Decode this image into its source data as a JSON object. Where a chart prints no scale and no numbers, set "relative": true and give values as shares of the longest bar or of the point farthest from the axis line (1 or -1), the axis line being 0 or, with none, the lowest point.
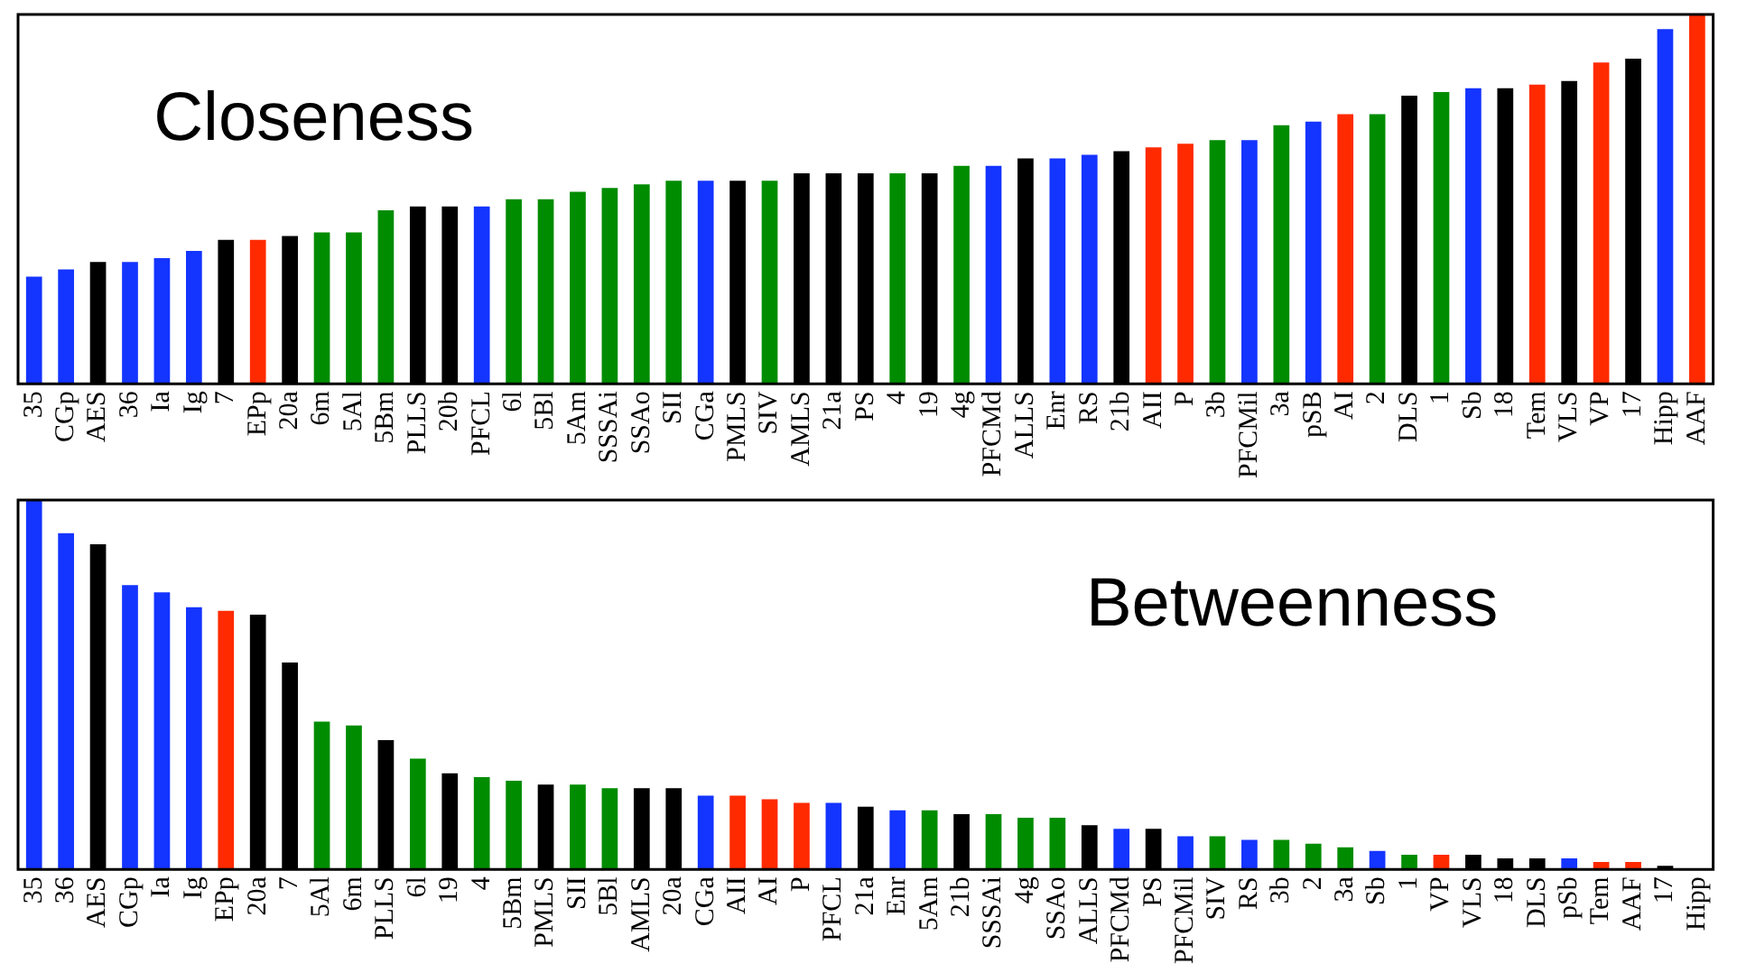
{
  "chart_data": [
    {
      "type": "bar",
      "title": "Closeness",
      "relative": true,
      "grid": false,
      "legend": false,
      "categories": [
        "35",
        "CGp",
        "AES",
        "36",
        "Ia",
        "Ig",
        "7",
        "EPp",
        "20a",
        "6m",
        "5Al",
        "5Bm",
        "PLLS",
        "20b",
        "PFCL",
        "6l",
        "5Bl",
        "5Am",
        "SSSAi",
        "SSAo",
        "SII",
        "CGa",
        "PMLS",
        "SIV",
        "AMLS",
        "21a",
        "PS",
        "4",
        "19",
        "4g",
        "PFCMd",
        "ALLS",
        "Enr",
        "RS",
        "21b",
        "AII",
        "P",
        "3b",
        "PFCMil",
        "3a",
        "pSB",
        "AI",
        "2",
        "DLS",
        "1",
        "Sb",
        "18",
        "Tem",
        "VLS",
        "VP",
        "17",
        "Hipp",
        "AAF"
      ],
      "values": [
        0.29,
        0.31,
        0.33,
        0.33,
        0.34,
        0.36,
        0.39,
        0.39,
        0.4,
        0.41,
        0.41,
        0.47,
        0.48,
        0.48,
        0.48,
        0.5,
        0.5,
        0.52,
        0.53,
        0.54,
        0.55,
        0.55,
        0.55,
        0.55,
        0.57,
        0.57,
        0.57,
        0.57,
        0.57,
        0.59,
        0.59,
        0.61,
        0.61,
        0.62,
        0.63,
        0.64,
        0.65,
        0.66,
        0.66,
        0.7,
        0.71,
        0.73,
        0.73,
        0.78,
        0.79,
        0.8,
        0.8,
        0.81,
        0.82,
        0.87,
        0.88,
        0.96,
        1
      ],
      "colors": [
        "#1434ff",
        "#1434ff",
        "#000000",
        "#1434ff",
        "#1434ff",
        "#1434ff",
        "#000000",
        "#ff2a00",
        "#000000",
        "#008c00",
        "#008c00",
        "#008c00",
        "#000000",
        "#000000",
        "#1434ff",
        "#008c00",
        "#008c00",
        "#008c00",
        "#008c00",
        "#008c00",
        "#008c00",
        "#1434ff",
        "#000000",
        "#008c00",
        "#000000",
        "#000000",
        "#000000",
        "#008c00",
        "#000000",
        "#008c00",
        "#1434ff",
        "#000000",
        "#1434ff",
        "#1434ff",
        "#000000",
        "#ff2a00",
        "#ff2a00",
        "#008c00",
        "#1434ff",
        "#008c00",
        "#1434ff",
        "#ff2a00",
        "#008c00",
        "#000000",
        "#008c00",
        "#1434ff",
        "#000000",
        "#ff2a00",
        "#000000",
        "#ff2a00",
        "#000000",
        "#1434ff",
        "#ff2a00"
      ]
    },
    {
      "type": "bar",
      "title": "Betweenness",
      "relative": true,
      "grid": false,
      "legend": false,
      "categories": [
        "35",
        "36",
        "AES",
        "CGp",
        "Ia",
        "Ig",
        "EPp",
        "20a",
        "7",
        "5Al",
        "6m",
        "PLLS",
        "6l",
        "19",
        "4",
        "5Bm",
        "PMLS",
        "SII",
        "5Bl",
        "AMLS",
        "20a",
        "CGa",
        "AII",
        "AI",
        "P",
        "PFCL",
        "21a",
        "Enr",
        "5Am",
        "21b",
        "SSSAi",
        "4g",
        "SSAo",
        "ALLS",
        "PFCMd",
        "PS",
        "PFCMil",
        "SIV",
        "RS",
        "3b",
        "2",
        "3a",
        "Sb",
        "1",
        "VP",
        "VLS",
        "18",
        "DLS",
        "pSb",
        "Tem",
        "AAF",
        "17",
        "Hipp"
      ],
      "values": [
        1,
        0.91,
        0.88,
        0.77,
        0.75,
        0.71,
        0.7,
        0.69,
        0.56,
        0.4,
        0.39,
        0.35,
        0.3,
        0.26,
        0.25,
        0.24,
        0.23,
        0.23,
        0.22,
        0.22,
        0.22,
        0.2,
        0.2,
        0.19,
        0.18,
        0.18,
        0.17,
        0.16,
        0.16,
        0.15,
        0.15,
        0.14,
        0.14,
        0.12,
        0.11,
        0.11,
        0.09,
        0.09,
        0.08,
        0.08,
        0.07,
        0.06,
        0.05,
        0.04,
        0.04,
        0.04,
        0.03,
        0.03,
        0.03,
        0.02,
        0.02,
        0.01,
        0.002
      ],
      "colors": [
        "#1434ff",
        "#1434ff",
        "#000000",
        "#1434ff",
        "#1434ff",
        "#1434ff",
        "#ff2a00",
        "#000000",
        "#000000",
        "#008c00",
        "#008c00",
        "#000000",
        "#008c00",
        "#000000",
        "#008c00",
        "#008c00",
        "#000000",
        "#008c00",
        "#008c00",
        "#000000",
        "#000000",
        "#1434ff",
        "#ff2a00",
        "#ff2a00",
        "#ff2a00",
        "#1434ff",
        "#000000",
        "#1434ff",
        "#008c00",
        "#000000",
        "#008c00",
        "#008c00",
        "#008c00",
        "#000000",
        "#1434ff",
        "#000000",
        "#1434ff",
        "#008c00",
        "#1434ff",
        "#008c00",
        "#008c00",
        "#008c00",
        "#1434ff",
        "#008c00",
        "#ff2a00",
        "#000000",
        "#000000",
        "#000000",
        "#1434ff",
        "#ff2a00",
        "#ff2a00",
        "#000000",
        "#000000"
      ]
    }
  ]
}
